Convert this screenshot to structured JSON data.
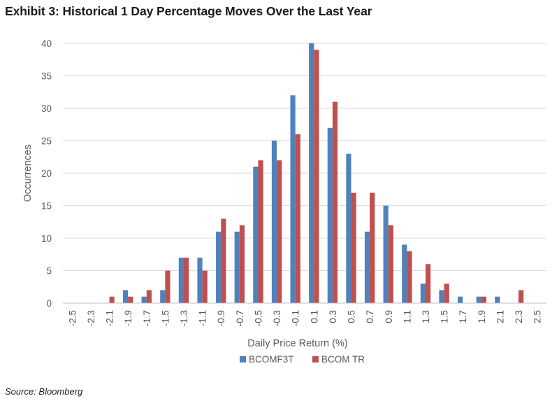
{
  "title": "Exhibit 3: Historical 1 Day Percentage Moves Over the Last Year",
  "source": "Source: Bloomberg",
  "chart_data": {
    "type": "bar",
    "categories": [
      "-2.5",
      "-2.3",
      "-2.1",
      "-1.9",
      "-1.7",
      "-1.5",
      "-1.3",
      "-1.1",
      "-0.9",
      "-0.7",
      "-0.5",
      "-0.3",
      "-0.1",
      "0.1",
      "0.3",
      "0.5",
      "0.7",
      "0.9",
      "1.1",
      "1.3",
      "1.5",
      "1.7",
      "1.9",
      "2.1",
      "2.3",
      "2.5"
    ],
    "series": [
      {
        "name": "BCOMF3T",
        "color": "#4f81bd",
        "values": [
          0,
          0,
          0,
          2,
          1,
          2,
          7,
          7,
          11,
          11,
          21,
          25,
          32,
          40,
          27,
          23,
          11,
          15,
          9,
          3,
          2,
          1,
          1,
          1,
          0,
          0
        ]
      },
      {
        "name": "BCOM TR",
        "color": "#c0504d",
        "values": [
          0,
          0,
          1,
          1,
          2,
          5,
          7,
          5,
          13,
          12,
          22,
          22,
          26,
          39,
          31,
          17,
          17,
          12,
          8,
          6,
          3,
          0,
          1,
          0,
          2,
          0
        ]
      }
    ],
    "xlabel": "Daily Price Return (%)",
    "ylabel": "Occurrences",
    "ylim": [
      0,
      40
    ],
    "yticks": [
      0,
      5,
      10,
      15,
      20,
      25,
      30,
      35,
      40
    ],
    "grid": true,
    "legend": "bottom"
  }
}
